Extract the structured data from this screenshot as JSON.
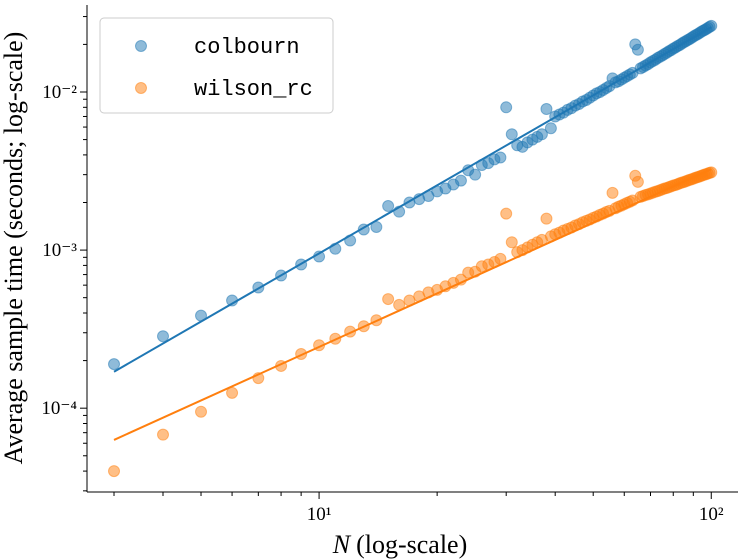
{
  "chart_data": {
    "type": "scatter",
    "xlabel_var": "N",
    "xlabel": "(log-scale)",
    "ylabel": "Average sample time (seconds; log-scale)",
    "xlog": true,
    "ylog": true,
    "legend": "upper left",
    "xlim": [
      2.56,
      117
    ],
    "ylim": [
      2.95e-05,
      0.0355
    ],
    "xticks": [
      {
        "value": 10,
        "label": "10¹"
      },
      {
        "value": 100,
        "label": "10²"
      }
    ],
    "yticks": [
      {
        "value": 0.0001,
        "label": "10⁻⁴"
      },
      {
        "value": 0.001,
        "label": "10⁻³"
      },
      {
        "value": 0.01,
        "label": "10⁻²"
      }
    ],
    "xminorticks": [
      3,
      4,
      5,
      6,
      7,
      8,
      9,
      20,
      30,
      40,
      50,
      60,
      70,
      80,
      90
    ],
    "yminorticks": [
      3e-05,
      4e-05,
      5e-05,
      6e-05,
      7e-05,
      8e-05,
      9e-05,
      0.0002,
      0.0003,
      0.0004,
      0.0005,
      0.0006,
      0.0007,
      0.0008,
      0.0009,
      0.002,
      0.003,
      0.004,
      0.005,
      0.006,
      0.007,
      0.008,
      0.009,
      0.02,
      0.03
    ],
    "x": [
      3,
      4,
      5,
      6,
      7,
      8,
      9,
      10,
      11,
      12,
      13,
      14,
      15,
      16,
      17,
      18,
      19,
      20,
      21,
      22,
      23,
      24,
      25,
      26,
      27,
      28,
      29,
      30,
      31,
      32,
      33,
      34,
      35,
      36,
      37,
      38,
      39,
      40,
      41,
      42,
      43,
      44,
      45,
      46,
      47,
      48,
      49,
      50,
      51,
      52,
      53,
      54,
      55,
      56,
      57,
      58,
      59,
      60,
      61,
      62,
      63,
      64,
      65,
      66,
      67,
      68,
      69,
      70,
      71,
      72,
      73,
      74,
      75,
      76,
      77,
      78,
      79,
      80,
      81,
      82,
      83,
      84,
      85,
      86,
      87,
      88,
      89,
      90,
      91,
      92,
      93,
      94,
      95,
      96,
      97,
      98,
      99,
      100
    ],
    "series": [
      {
        "name": "colbourn",
        "color": "#1f77b4",
        "values": [
          0.00019,
          0.000285,
          0.000385,
          0.00048,
          0.00058,
          0.00069,
          0.00081,
          0.00091,
          0.00102,
          0.00115,
          0.00135,
          0.0014,
          0.0019,
          0.00175,
          0.002,
          0.0021,
          0.0022,
          0.00235,
          0.00245,
          0.0026,
          0.00275,
          0.0032,
          0.003,
          0.00345,
          0.00355,
          0.00375,
          0.00385,
          0.008,
          0.0054,
          0.0046,
          0.0045,
          0.0048,
          0.005,
          0.0052,
          0.0054,
          0.0078,
          0.0059,
          0.007,
          0.0072,
          0.0074,
          0.0077,
          0.0079,
          0.0082,
          0.0084,
          0.0087,
          0.0089,
          0.0092,
          0.0095,
          0.0098,
          0.01,
          0.0103,
          0.0106,
          0.0109,
          0.0122,
          0.0115,
          0.0117,
          0.012,
          0.0123,
          0.0126,
          0.0129,
          0.0132,
          0.02,
          0.0185,
          0.0141,
          0.0144,
          0.0147,
          0.015,
          0.0154,
          0.0157,
          0.016,
          0.0164,
          0.0167,
          0.017,
          0.0174,
          0.0177,
          0.0181,
          0.0184,
          0.0188,
          0.0191,
          0.0195,
          0.0198,
          0.0202,
          0.0206,
          0.0209,
          0.0213,
          0.0216,
          0.022,
          0.0224,
          0.0228,
          0.0231,
          0.0235,
          0.0239,
          0.0243,
          0.0246,
          0.025,
          0.0254,
          0.0258,
          0.0262
        ],
        "fit": {
          "x": [
            3,
            100
          ],
          "values": [
            0.00017,
            0.0257
          ]
        }
      },
      {
        "name": "wilson_rc",
        "color": "#ff7f0e",
        "values": [
          4e-05,
          6.8e-05,
          9.5e-05,
          0.000125,
          0.000155,
          0.000185,
          0.00022,
          0.00025,
          0.000275,
          0.000305,
          0.00033,
          0.00036,
          0.00049,
          0.00045,
          0.00048,
          0.00051,
          0.00054,
          0.00056,
          0.00059,
          0.00062,
          0.00065,
          0.00072,
          0.00073,
          0.00079,
          0.00081,
          0.00084,
          0.00088,
          0.0017,
          0.00112,
          0.00097,
          0.001,
          0.00104,
          0.00108,
          0.00112,
          0.00116,
          0.00158,
          0.00122,
          0.00126,
          0.00129,
          0.00133,
          0.00136,
          0.00139,
          0.00143,
          0.00146,
          0.0015,
          0.00153,
          0.00156,
          0.0016,
          0.00163,
          0.00167,
          0.0017,
          0.00174,
          0.00177,
          0.0023,
          0.00184,
          0.00188,
          0.00191,
          0.00195,
          0.00199,
          0.00202,
          0.00206,
          0.00295,
          0.0027,
          0.00217,
          0.0022,
          0.00223,
          0.00225,
          0.00228,
          0.00231,
          0.00234,
          0.00236,
          0.00239,
          0.00242,
          0.00245,
          0.00247,
          0.0025,
          0.00253,
          0.00256,
          0.00258,
          0.00261,
          0.00264,
          0.00267,
          0.00269,
          0.00272,
          0.00275,
          0.00278,
          0.0028,
          0.00283,
          0.00286,
          0.00289,
          0.00291,
          0.00294,
          0.00297,
          0.003,
          0.00302,
          0.00305,
          0.00308,
          0.0031
        ],
        "fit": {
          "x": [
            3,
            100
          ],
          "values": [
            6.3e-05,
            0.00325
          ]
        }
      }
    ]
  }
}
